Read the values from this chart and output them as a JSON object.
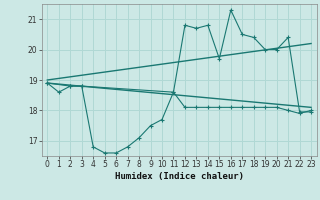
{
  "xlabel": "Humidex (Indice chaleur)",
  "background_color": "#cce8e5",
  "grid_color": "#b0d8d4",
  "line_color": "#1a7872",
  "ylim": [
    16.5,
    21.5
  ],
  "xlim": [
    -0.5,
    23.5
  ],
  "yticks": [
    17,
    18,
    19,
    20,
    21
  ],
  "xticks": [
    0,
    1,
    2,
    3,
    4,
    5,
    6,
    7,
    8,
    9,
    10,
    11,
    12,
    13,
    14,
    15,
    16,
    17,
    18,
    19,
    20,
    21,
    22,
    23
  ],
  "series1_x": [
    0,
    1,
    2,
    3,
    4,
    5,
    6,
    7,
    8,
    9,
    10,
    11,
    12,
    13,
    14,
    15,
    16,
    17,
    18,
    19,
    20,
    21,
    22,
    23
  ],
  "series1_y": [
    18.9,
    18.6,
    18.8,
    18.8,
    16.8,
    16.6,
    16.6,
    16.8,
    17.1,
    17.5,
    17.7,
    18.6,
    18.1,
    18.1,
    18.1,
    18.1,
    18.1,
    18.1,
    18.1,
    18.1,
    18.1,
    18.0,
    17.9,
    18.0
  ],
  "series2_x": [
    0,
    2,
    3,
    11,
    12,
    13,
    14,
    15,
    16,
    17,
    18,
    19,
    20,
    21,
    22,
    23
  ],
  "series2_y": [
    18.9,
    18.8,
    18.8,
    18.6,
    20.8,
    20.7,
    20.8,
    19.7,
    21.3,
    20.5,
    20.4,
    20.0,
    20.0,
    20.4,
    17.95,
    17.95
  ],
  "trend1_x": [
    0,
    23
  ],
  "trend1_y": [
    19.0,
    20.2
  ],
  "trend2_x": [
    0,
    23
  ],
  "trend2_y": [
    18.9,
    18.1
  ]
}
